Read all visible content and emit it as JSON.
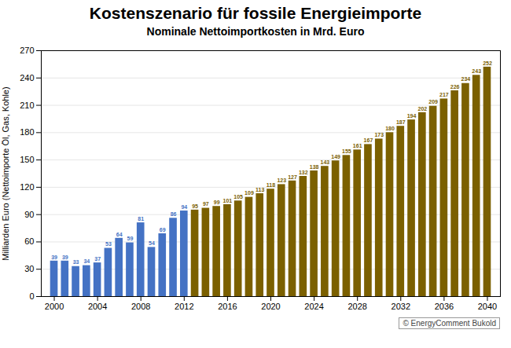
{
  "chart_data": {
    "type": "bar",
    "title": "Kostenszenario für fossile Energieimporte",
    "subtitle": "Nominale Nettoimportkosten in Mrd. Euro",
    "ylabel": "Milliarden Euro (Nettoimporte Öl, Gas, Kohle)",
    "annotation": "© EnergyComment Bukold",
    "x": [
      2000,
      2001,
      2002,
      2003,
      2004,
      2005,
      2006,
      2007,
      2008,
      2009,
      2010,
      2011,
      2012,
      2013,
      2014,
      2015,
      2016,
      2017,
      2018,
      2019,
      2020,
      2021,
      2022,
      2023,
      2024,
      2025,
      2026,
      2027,
      2028,
      2029,
      2030,
      2031,
      2032,
      2033,
      2034,
      2035,
      2036,
      2037,
      2038,
      2039,
      2040
    ],
    "values": [
      39,
      39,
      33,
      34,
      37,
      53,
      64,
      59,
      81,
      54,
      69,
      86,
      94,
      95,
      97,
      99,
      101,
      105,
      109,
      113,
      118,
      123,
      127,
      132,
      138,
      143,
      149,
      155,
      161,
      167,
      173,
      180,
      187,
      194,
      202,
      209,
      217,
      226,
      234,
      243,
      252
    ],
    "colors": [
      "#4472C4",
      "#4472C4",
      "#4472C4",
      "#4472C4",
      "#4472C4",
      "#4472C4",
      "#4472C4",
      "#4472C4",
      "#4472C4",
      "#4472C4",
      "#4472C4",
      "#4472C4",
      "#4472C4",
      "#7B6000",
      "#7B6000",
      "#7B6000",
      "#7B6000",
      "#7B6000",
      "#7B6000",
      "#7B6000",
      "#7B6000",
      "#7B6000",
      "#7B6000",
      "#7B6000",
      "#7B6000",
      "#7B6000",
      "#7B6000",
      "#7B6000",
      "#7B6000",
      "#7B6000",
      "#7B6000",
      "#7B6000",
      "#7B6000",
      "#7B6000",
      "#7B6000",
      "#7B6000",
      "#7B6000",
      "#7B6000",
      "#7B6000",
      "#7B6000",
      "#7B6000"
    ],
    "xlim": [
      1998.8,
      2041.2
    ],
    "xticks": [
      2000,
      2004,
      2008,
      2012,
      2016,
      2020,
      2024,
      2028,
      2032,
      2036,
      2040
    ],
    "ylim": [
      0,
      270
    ],
    "yticks": [
      0,
      30,
      60,
      90,
      120,
      150,
      180,
      210,
      240,
      270
    ],
    "grid": true,
    "data_labels": true
  }
}
